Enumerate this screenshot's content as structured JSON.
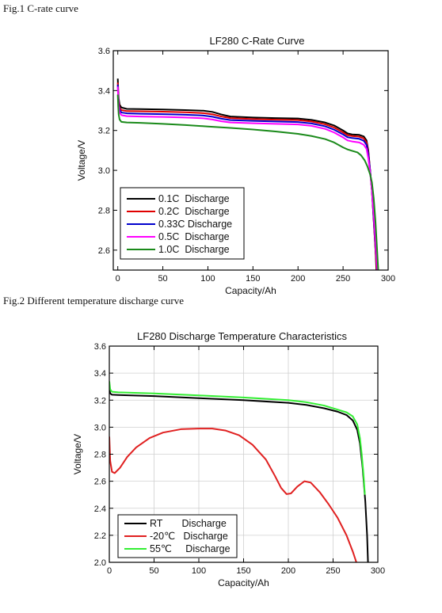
{
  "captions": {
    "fig1": "Fig.1 C-rate curve",
    "fig2": "Fig.2 Different temperature discharge curve"
  },
  "chart_data": [
    {
      "type": "line",
      "title": "LF280 C-Rate Curve",
      "xlabel": "Capacity/Ah",
      "ylabel": "Voltage/V",
      "xlim": [
        -5,
        300
      ],
      "ylim": [
        2.5,
        3.6
      ],
      "xticks": [
        "0",
        "50",
        "100",
        "150",
        "200",
        "250",
        "300"
      ],
      "yticks": [
        "2.6",
        "2.8",
        "3.0",
        "3.2",
        "3.4",
        "3.6"
      ],
      "grid": false,
      "legend_position": "bottom-left",
      "series": [
        {
          "name": "0.1C  Discharge",
          "color": "#000000",
          "points": [
            [
              0,
              3.46
            ],
            [
              0.5,
              3.4
            ],
            [
              1,
              3.36
            ],
            [
              2,
              3.33
            ],
            [
              4,
              3.315
            ],
            [
              10,
              3.308
            ],
            [
              25,
              3.307
            ],
            [
              50,
              3.305
            ],
            [
              75,
              3.302
            ],
            [
              95,
              3.299
            ],
            [
              105,
              3.293
            ],
            [
              115,
              3.28
            ],
            [
              125,
              3.27
            ],
            [
              150,
              3.265
            ],
            [
              175,
              3.262
            ],
            [
              200,
              3.26
            ],
            [
              215,
              3.253
            ],
            [
              230,
              3.24
            ],
            [
              240,
              3.225
            ],
            [
              250,
              3.2
            ],
            [
              255,
              3.185
            ],
            [
              260,
              3.18
            ],
            [
              268,
              3.178
            ],
            [
              273,
              3.17
            ],
            [
              276,
              3.15
            ],
            [
              278,
              3.1
            ],
            [
              280,
              3.0
            ],
            [
              282,
              2.9
            ],
            [
              284,
              2.75
            ],
            [
              286,
              2.6
            ],
            [
              287,
              2.5
            ]
          ]
        },
        {
          "name": "0.2C  Discharge",
          "color": "#e00000",
          "points": [
            [
              0,
              3.44
            ],
            [
              0.5,
              3.38
            ],
            [
              1,
              3.34
            ],
            [
              2,
              3.315
            ],
            [
              4,
              3.302
            ],
            [
              10,
              3.297
            ],
            [
              25,
              3.296
            ],
            [
              50,
              3.294
            ],
            [
              75,
              3.291
            ],
            [
              95,
              3.287
            ],
            [
              105,
              3.281
            ],
            [
              115,
              3.27
            ],
            [
              125,
              3.262
            ],
            [
              150,
              3.257
            ],
            [
              175,
              3.254
            ],
            [
              200,
              3.252
            ],
            [
              215,
              3.245
            ],
            [
              230,
              3.231
            ],
            [
              240,
              3.215
            ],
            [
              250,
              3.19
            ],
            [
              255,
              3.176
            ],
            [
              260,
              3.172
            ],
            [
              268,
              3.169
            ],
            [
              273,
              3.16
            ],
            [
              276,
              3.14
            ],
            [
              278,
              3.09
            ],
            [
              280,
              3.0
            ],
            [
              282,
              2.9
            ],
            [
              284,
              2.75
            ],
            [
              286,
              2.6
            ],
            [
              287.5,
              2.5
            ]
          ]
        },
        {
          "name": "0.33C Discharge",
          "color": "#0000cc",
          "points": [
            [
              0,
              3.43
            ],
            [
              0.5,
              3.37
            ],
            [
              1,
              3.33
            ],
            [
              2,
              3.305
            ],
            [
              4,
              3.29
            ],
            [
              10,
              3.286
            ],
            [
              25,
              3.284
            ],
            [
              50,
              3.282
            ],
            [
              75,
              3.279
            ],
            [
              95,
              3.275
            ],
            [
              105,
              3.269
            ],
            [
              115,
              3.259
            ],
            [
              125,
              3.252
            ],
            [
              150,
              3.248
            ],
            [
              175,
              3.245
            ],
            [
              200,
              3.242
            ],
            [
              215,
              3.235
            ],
            [
              230,
              3.221
            ],
            [
              240,
              3.204
            ],
            [
              250,
              3.18
            ],
            [
              255,
              3.166
            ],
            [
              260,
              3.162
            ],
            [
              268,
              3.158
            ],
            [
              273,
              3.148
            ],
            [
              276,
              3.128
            ],
            [
              278,
              3.08
            ],
            [
              280,
              3.0
            ],
            [
              282,
              2.9
            ],
            [
              284,
              2.76
            ],
            [
              286,
              2.62
            ],
            [
              288,
              2.5
            ]
          ]
        },
        {
          "name": "0.5C  Discharge",
          "color": "#ff00ff",
          "points": [
            [
              0,
              3.42
            ],
            [
              0.5,
              3.36
            ],
            [
              1,
              3.32
            ],
            [
              2,
              3.29
            ],
            [
              4,
              3.277
            ],
            [
              10,
              3.272
            ],
            [
              25,
              3.27
            ],
            [
              50,
              3.268
            ],
            [
              75,
              3.265
            ],
            [
              95,
              3.261
            ],
            [
              105,
              3.255
            ],
            [
              115,
              3.246
            ],
            [
              125,
              3.24
            ],
            [
              150,
              3.236
            ],
            [
              175,
              3.233
            ],
            [
              200,
              3.23
            ],
            [
              215,
              3.223
            ],
            [
              230,
              3.208
            ],
            [
              240,
              3.19
            ],
            [
              250,
              3.165
            ],
            [
              255,
              3.15
            ],
            [
              260,
              3.145
            ],
            [
              268,
              3.14
            ],
            [
              273,
              3.128
            ],
            [
              276,
              3.108
            ],
            [
              278,
              3.06
            ],
            [
              280,
              2.99
            ],
            [
              282,
              2.9
            ],
            [
              284,
              2.78
            ],
            [
              286,
              2.64
            ],
            [
              288,
              2.5
            ]
          ]
        },
        {
          "name": "1.0C  Discharge",
          "color": "#1a8a1a",
          "points": [
            [
              0,
              3.38
            ],
            [
              0.5,
              3.32
            ],
            [
              1,
              3.28
            ],
            [
              2,
              3.255
            ],
            [
              4,
              3.243
            ],
            [
              10,
              3.24
            ],
            [
              25,
              3.238
            ],
            [
              50,
              3.233
            ],
            [
              75,
              3.227
            ],
            [
              100,
              3.22
            ],
            [
              125,
              3.213
            ],
            [
              150,
              3.205
            ],
            [
              175,
              3.195
            ],
            [
              200,
              3.183
            ],
            [
              215,
              3.172
            ],
            [
              230,
              3.157
            ],
            [
              240,
              3.14
            ],
            [
              250,
              3.115
            ],
            [
              255,
              3.105
            ],
            [
              260,
              3.098
            ],
            [
              266,
              3.09
            ],
            [
              270,
              3.075
            ],
            [
              274,
              3.05
            ],
            [
              277,
              3.02
            ],
            [
              280,
              2.98
            ],
            [
              282,
              2.94
            ],
            [
              284,
              2.86
            ],
            [
              286,
              2.74
            ],
            [
              287.5,
              2.62
            ],
            [
              289,
              2.5
            ]
          ]
        }
      ]
    },
    {
      "type": "line",
      "title": "LF280 Discharge Temperature Characteristics",
      "xlabel": "Capacity/Ah",
      "ylabel": "Voltage/V",
      "xlim": [
        0,
        300
      ],
      "ylim": [
        2.0,
        3.6
      ],
      "xticks": [
        "0",
        "50",
        "100",
        "150",
        "200",
        "250",
        "300"
      ],
      "yticks": [
        "2.0",
        "2.2",
        "2.4",
        "2.6",
        "2.8",
        "3.0",
        "3.2",
        "3.4",
        "3.6"
      ],
      "grid": true,
      "legend_position": "bottom-left",
      "series": [
        {
          "name": "RT       Discharge",
          "color": "#000000",
          "points": [
            [
              0,
              3.28
            ],
            [
              1,
              3.25
            ],
            [
              3,
              3.24
            ],
            [
              10,
              3.238
            ],
            [
              50,
              3.23
            ],
            [
              100,
              3.215
            ],
            [
              150,
              3.2
            ],
            [
              200,
              3.18
            ],
            [
              220,
              3.165
            ],
            [
              240,
              3.14
            ],
            [
              255,
              3.115
            ],
            [
              265,
              3.09
            ],
            [
              272,
              3.05
            ],
            [
              277,
              2.98
            ],
            [
              280,
              2.88
            ],
            [
              283,
              2.7
            ],
            [
              286,
              2.45
            ],
            [
              288,
              2.2
            ],
            [
              289,
              2.0
            ]
          ]
        },
        {
          "name": "-20℃   Discharge",
          "color": "#e02020",
          "points": [
            [
              0,
              2.93
            ],
            [
              1,
              2.75
            ],
            [
              3,
              2.67
            ],
            [
              6,
              2.66
            ],
            [
              12,
              2.7
            ],
            [
              20,
              2.78
            ],
            [
              30,
              2.85
            ],
            [
              45,
              2.92
            ],
            [
              60,
              2.96
            ],
            [
              80,
              2.985
            ],
            [
              100,
              2.99
            ],
            [
              115,
              2.99
            ],
            [
              130,
              2.975
            ],
            [
              145,
              2.94
            ],
            [
              160,
              2.87
            ],
            [
              175,
              2.76
            ],
            [
              185,
              2.64
            ],
            [
              192,
              2.55
            ],
            [
              198,
              2.505
            ],
            [
              203,
              2.51
            ],
            [
              210,
              2.56
            ],
            [
              218,
              2.6
            ],
            [
              225,
              2.59
            ],
            [
              235,
              2.52
            ],
            [
              245,
              2.43
            ],
            [
              255,
              2.33
            ],
            [
              265,
              2.2
            ],
            [
              272,
              2.08
            ],
            [
              276,
              2.0
            ]
          ]
        },
        {
          "name": "55℃     Discharge",
          "color": "#33ee33",
          "points": [
            [
              0,
              3.34
            ],
            [
              1,
              3.28
            ],
            [
              3,
              3.262
            ],
            [
              10,
              3.258
            ],
            [
              50,
              3.25
            ],
            [
              100,
              3.235
            ],
            [
              150,
              3.22
            ],
            [
              200,
              3.2
            ],
            [
              220,
              3.185
            ],
            [
              240,
              3.16
            ],
            [
              255,
              3.13
            ],
            [
              265,
              3.11
            ],
            [
              272,
              3.08
            ],
            [
              277,
              3.02
            ],
            [
              280,
              2.92
            ],
            [
              282,
              2.8
            ],
            [
              284,
              2.65
            ],
            [
              285.5,
              2.5
            ]
          ]
        }
      ]
    }
  ]
}
